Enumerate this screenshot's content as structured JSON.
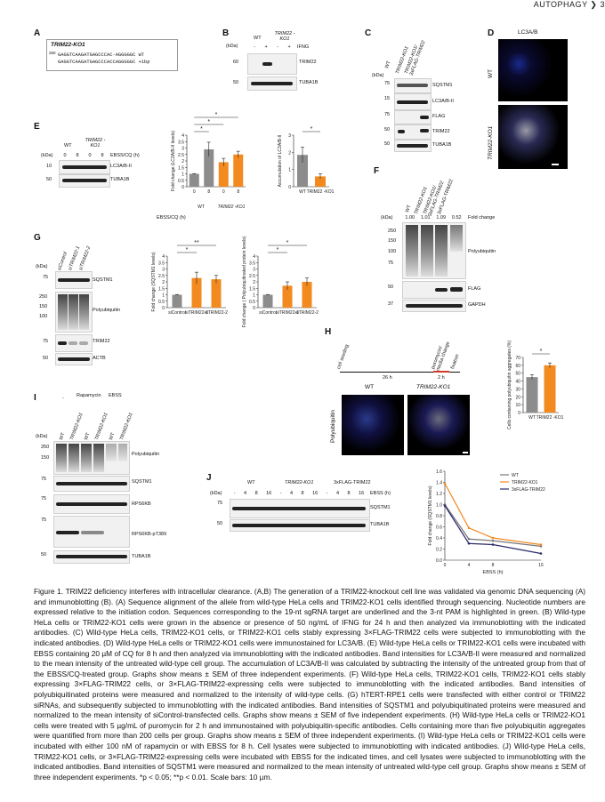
{
  "header": {
    "journal": "AUTOPHAGY",
    "page": "3"
  },
  "panels": {
    "A": {
      "label": "A",
      "title": "TRIM22-KO1",
      "num": "250",
      "seq1": "GAGGTCAAGATGAGCCCAC-AGGGGGC WT",
      "seq2": "GAGGTCAAGATGAGCCCACCAGGGGGC +1bp"
    },
    "B": {
      "label": "B",
      "cols": [
        "WT",
        "TRIM22 -KO1"
      ],
      "treat_label": "IFNG",
      "treat": [
        "-",
        "+",
        "-",
        "+"
      ],
      "kda": [
        "(kDa)",
        "60",
        "50"
      ],
      "bands": [
        "TRIM22",
        "TUBA1B"
      ]
    },
    "C": {
      "label": "C",
      "cols": [
        "WT",
        "TRIM22-KO1",
        "TRIM22-KO1/ 3xFLAG-TRIM22"
      ],
      "kda": [
        "(kDa)",
        "75",
        "50",
        "15",
        "10",
        "75",
        "50",
        "50"
      ],
      "bands": [
        "SQSTM1",
        "LC3A/B-II",
        "FLAG",
        "TRIM22",
        "TUBA1B"
      ]
    },
    "D": {
      "label": "D",
      "title": "LC3A/B",
      "rows": [
        "WT",
        "TRIM22-KO1"
      ]
    },
    "E": {
      "label": "E",
      "cols": [
        "WT",
        "TRIM22 -KO1"
      ],
      "ebss_label": "EBSS/CQ (h)",
      "ebss": [
        "0",
        "8",
        "0",
        "8"
      ],
      "kda": [
        "(kDa)",
        "10",
        "50"
      ],
      "bands": [
        "LC3A/B-II",
        "TUBA1B"
      ],
      "sig": "*"
    },
    "F": {
      "label": "F",
      "cols": [
        "WT",
        "TRIM22-KO1",
        "TRIM22-KO1/ 3xFLAG-TRIM22",
        "3xFLAG-TRIM22"
      ],
      "fold_vals": [
        "1.00",
        "1.01",
        "1.09",
        "0.52"
      ],
      "fold_label": "Fold change",
      "kda": [
        "(kDa)",
        "250",
        "150",
        "100",
        "75",
        "50",
        "37",
        "50",
        "37"
      ],
      "bands": [
        "Polyubiquitin",
        "FLAG",
        "GAPDH"
      ]
    },
    "G": {
      "label": "G",
      "cols": [
        "siControl",
        "siTRIM22-1",
        "siTRIM22-2"
      ],
      "kda": [
        "(kDa)",
        "75",
        "50",
        "250",
        "150",
        "100",
        "75",
        "50",
        "37"
      ],
      "bands": [
        "SQSTM1",
        "Polyubiquitin",
        "TRIM22",
        "ACTB"
      ]
    },
    "H": {
      "label": "H",
      "timeline": [
        "cell seeding",
        "puromycin/ media change",
        "fixation"
      ],
      "durations": [
        "26 h",
        "2 h"
      ],
      "img_cols": [
        "WT",
        "TRIM22-KO1"
      ],
      "img_row": "Polyubiquitin",
      "sig": "*"
    },
    "I": {
      "label": "I",
      "groups": [
        "-",
        "Rapamycin",
        "EBSS"
      ],
      "cols": [
        "WT",
        "TRIM22-KO1",
        "WT",
        "TRIM22-KO1",
        "WT",
        "TRIM22-KO1"
      ],
      "kda": [
        "(kDa)",
        "250",
        "150",
        "100",
        "75",
        "50",
        "75",
        "50",
        "75",
        "50",
        "50"
      ],
      "bands": [
        "Polyubiquitin",
        "SQSTM1",
        "RPS6KB",
        "RPS6KB-pT389",
        "TUBA1B"
      ]
    },
    "J": {
      "label": "J",
      "groups": [
        "WT",
        "TRIM22-KO1",
        "3xFLAG-TRIM22"
      ],
      "ebss_label": "EBSS (h)",
      "ebss": [
        "-",
        "4",
        "8",
        "16",
        "-",
        "4",
        "8",
        "16",
        "-",
        "4",
        "8",
        "16"
      ],
      "kda": [
        "(kDa)",
        "75",
        "50",
        "50"
      ],
      "bands": [
        "SQSTM1",
        "TUBA1B"
      ]
    }
  },
  "chart_data": [
    {
      "id": "E-left",
      "type": "bar",
      "ylabel": "Fold change (LC3A/B-II levels)",
      "xlabel": "EBSS/CQ (h)",
      "categories": [
        "0",
        "8",
        "0",
        "8"
      ],
      "groups": [
        "WT",
        "TRIM22 -KO1"
      ],
      "values": [
        1.0,
        2.9,
        1.9,
        2.5
      ],
      "errors": [
        0.02,
        0.55,
        0.3,
        0.25
      ],
      "ylim": [
        0,
        4
      ],
      "yticks": [
        0,
        0.5,
        1.0,
        1.5,
        2.0,
        2.5,
        3.0,
        3.5,
        4.0
      ],
      "colors": [
        "#8c8c8c",
        "#8c8c8c",
        "#f28a1f",
        "#f28a1f"
      ],
      "sig": [
        "*",
        "*",
        "*"
      ]
    },
    {
      "id": "E-right",
      "type": "bar",
      "ylabel": "Accumulation of LC3A/B-II",
      "categories": [
        "WT",
        "TRIM22 -KO1"
      ],
      "values": [
        1.85,
        0.6
      ],
      "errors": [
        0.45,
        0.15
      ],
      "ylim": [
        0,
        3
      ],
      "yticks": [
        0,
        1,
        2,
        3
      ],
      "colors": [
        "#8c8c8c",
        "#f28a1f"
      ],
      "sig": [
        "*"
      ]
    },
    {
      "id": "G-left",
      "type": "bar",
      "ylabel": "Fold change (SQSTM1 levels)",
      "categories": [
        "siControl",
        "siTRIM22-1",
        "siTRIM22-2"
      ],
      "values": [
        1.0,
        2.3,
        2.2
      ],
      "errors": [
        0.02,
        0.45,
        0.3
      ],
      "ylim": [
        0,
        4
      ],
      "yticks": [
        0,
        0.5,
        1.0,
        1.5,
        2.0,
        2.5,
        3.0,
        3.5,
        4.0
      ],
      "colors": [
        "#8c8c8c",
        "#f28a1f",
        "#f28a1f"
      ],
      "sig": [
        "*",
        "**"
      ]
    },
    {
      "id": "G-right",
      "type": "bar",
      "ylabel": "Fold change ( Polyubiquitinated protein levels)",
      "categories": [
        "siControl",
        "siTRIM22-1",
        "siTRIM22-2"
      ],
      "values": [
        1.0,
        1.7,
        2.0
      ],
      "errors": [
        0.02,
        0.3,
        0.3
      ],
      "ylim": [
        0,
        4
      ],
      "yticks": [
        0,
        0.5,
        1.0,
        1.5,
        2.0,
        2.5,
        3.0,
        3.5,
        4.0
      ],
      "colors": [
        "#8c8c8c",
        "#f28a1f",
        "#f28a1f"
      ],
      "sig": [
        "*",
        "*"
      ]
    },
    {
      "id": "H",
      "type": "bar",
      "ylabel": "Cells containing polyubiquitin aggregates (%)",
      "categories": [
        "WT",
        "TRIM22 -KO1"
      ],
      "values": [
        45,
        60
      ],
      "errors": [
        3,
        3
      ],
      "ylim": [
        0,
        70
      ],
      "yticks": [
        0,
        10,
        20,
        30,
        40,
        50,
        60,
        70
      ],
      "colors": [
        "#8c8c8c",
        "#f28a1f"
      ],
      "sig": [
        "*"
      ]
    },
    {
      "id": "J",
      "type": "line",
      "ylabel": "Fold change (SQSTM1 levels)",
      "xlabel": "EBSS (h)",
      "x": [
        0,
        4,
        8,
        16
      ],
      "xticks": [
        0,
        4,
        8,
        16
      ],
      "ylim": [
        0,
        1.6
      ],
      "yticks": [
        0,
        0.2,
        0.4,
        0.6,
        0.8,
        1.0,
        1.2,
        1.4,
        1.6
      ],
      "series": [
        {
          "name": "WT",
          "values": [
            1.0,
            0.38,
            0.35,
            0.25
          ],
          "color": "#777777"
        },
        {
          "name": "TRIM22-KO1",
          "values": [
            1.38,
            0.58,
            0.4,
            0.28
          ],
          "color": "#f28a1f"
        },
        {
          "name": "3xFLAG-TRIM22",
          "values": [
            0.98,
            0.3,
            0.28,
            0.12
          ],
          "color": "#2b2a6b"
        }
      ],
      "legend": "top-right"
    }
  ],
  "caption": "Figure 1. TRIM22 deficiency interferes with intracellular clearance. (A,B) The generation of a TRIM22-knockout cell line was validated via genomic DNA sequencing (A) and immunoblotting (B). (A) Sequence alignment of the allele from wild-type HeLa cells and TRIM22-KO1 cells identified through sequencing. Nucleotide numbers are expressed relative to the initiation codon. Sequences corresponding to the 19-nt sgRNA target are underlined and the 3-nt PAM is highlighted in green. (B) Wild-type HeLa cells or TRIM22-KO1 cells were grown in the absence or presence of 50 ng/mL of IFNG for 24 h and then analyzed via immunoblotting with the indicated antibodies. (C) Wild-type HeLa cells, TRIM22-KO1 cells, or TRIM22-KO1 cells stably expressing 3×FLAG-TRIM22 cells were subjected to immunoblotting with the indicated antibodies. (D) Wild-type HeLa cells or TRIM22-KO1 cells were immunostained for LC3A/B. (E) Wild-type HeLa cells or TRIM22-KO1 cells were incubated with EBSS containing 20 µM of CQ for 8 h and then analyzed via immunoblotting with the indicated antibodies. Band intensities for LC3A/B-II were measured and normalized to the mean intensity of the untreated wild-type cell group. The accumulation of LC3A/B-II was calculated by subtracting the intensity of the untreated group from that of the EBSS/CQ-treated group. Graphs show means ± SEM of three independent experiments. (F) Wild-type HeLa cells, TRIM22-KO1 cells, TRIM22-KO1 cells stably expressing 3×FLAG-TRIM22 cells, or 3×FLAG-TRIM22-expressing cells were subjected to immunoblotting with the indicated antibodies. Band intensities of polyubiquitinated proteins were measured and normalized to the intensity of wild-type cells. (G) hTERT-RPE1 cells were transfected with either control or TRIM22 siRNAs, and subsequently subjected to immunoblotting with the indicated antibodies. Band intensities of SQSTM1 and polyubiquitinated proteins were measured and normalized to the mean intensity of siControl-transfected cells. Graphs show means ± SEM of five independent experiments. (H) Wild-type HeLa cells or TRIM22-KO1 cells were treated with 5 µg/mL of puromycin for 2 h and immunostained with polyubiquitin-specific antibodies. Cells containing more than five polyubiquitin aggregates were quantified from more than 200 cells per group. Graphs show means ± SEM of three independent experiments. (I) Wild-type HeLa cells or TRIM22-KO1 cells were incubated with either 100 nM of rapamycin or with EBSS for 8 h. Cell lysates were subjected to immunoblotting with indicated antibodies. (J) Wild-type HeLa cells, TRIM22-KO1 cells, or 3×FLAG-TRIM22-expressing cells were incubated with EBSS for the indicated times, and cell lysates were subjected to immunoblotting with the indicated antibodies. Band intensities of SQSTM1 were measured and normalized to the mean intensity of untreated wild-type cell group. Graphs show means ± SEM of three independent experiments. *p < 0.05; **p < 0.01. Scale bars: 10 µm."
}
